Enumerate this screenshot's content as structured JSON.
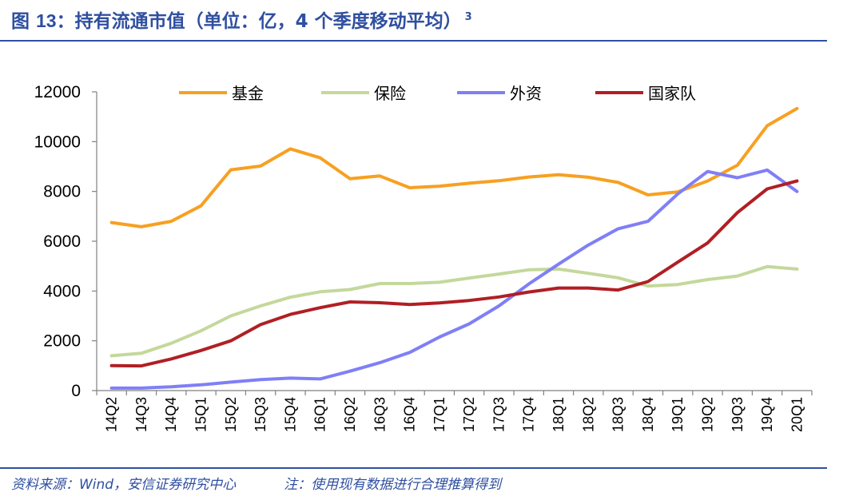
{
  "figure": {
    "label": "图",
    "number": "13",
    "title": "：持有流通市值（单位：亿，4 个季度移动平均）",
    "footnote_mark": "3"
  },
  "footer": {
    "source": "资料来源：Wind，安信证券研究中心",
    "note": "注：使用现有数据进行合理推算得到"
  },
  "chart_data": {
    "type": "line",
    "title": "",
    "xlabel": "",
    "ylabel": "",
    "ylim": [
      0,
      12000
    ],
    "yticks": [
      0,
      2000,
      4000,
      6000,
      8000,
      10000,
      12000
    ],
    "grid": false,
    "legend": "top",
    "categories": [
      "14Q2",
      "14Q3",
      "14Q4",
      "15Q1",
      "15Q2",
      "15Q3",
      "15Q4",
      "16Q1",
      "16Q2",
      "16Q3",
      "16Q4",
      "17Q1",
      "17Q2",
      "17Q3",
      "17Q4",
      "18Q1",
      "18Q2",
      "18Q3",
      "18Q4",
      "19Q1",
      "19Q2",
      "19Q3",
      "19Q4",
      "20Q1"
    ],
    "series": [
      {
        "name": "基金",
        "color": "#f7a021",
        "values": [
          6750,
          6580,
          6800,
          7420,
          8870,
          9020,
          9710,
          9350,
          8510,
          8620,
          8150,
          8210,
          8330,
          8430,
          8580,
          8670,
          8570,
          8360,
          7860,
          7980,
          8420,
          9050,
          10640,
          11330
        ]
      },
      {
        "name": "保险",
        "color": "#c4d89b",
        "values": [
          1400,
          1500,
          1900,
          2400,
          3000,
          3400,
          3750,
          3970,
          4060,
          4300,
          4300,
          4350,
          4520,
          4680,
          4850,
          4880,
          4710,
          4530,
          4200,
          4260,
          4460,
          4600,
          4980,
          4880
        ]
      },
      {
        "name": "外资",
        "color": "#7f7ff7",
        "values": [
          100,
          100,
          150,
          230,
          340,
          440,
          500,
          470,
          780,
          1120,
          1530,
          2150,
          2680,
          3400,
          4280,
          5080,
          5850,
          6500,
          6800,
          7900,
          8800,
          8550,
          8860,
          8000
        ]
      },
      {
        "name": "国家队",
        "color": "#b01f24",
        "values": [
          1000,
          990,
          1270,
          1610,
          2000,
          2650,
          3060,
          3330,
          3560,
          3530,
          3460,
          3520,
          3620,
          3760,
          3960,
          4120,
          4120,
          4040,
          4380,
          5160,
          5930,
          7150,
          8100,
          8420
        ]
      }
    ]
  }
}
